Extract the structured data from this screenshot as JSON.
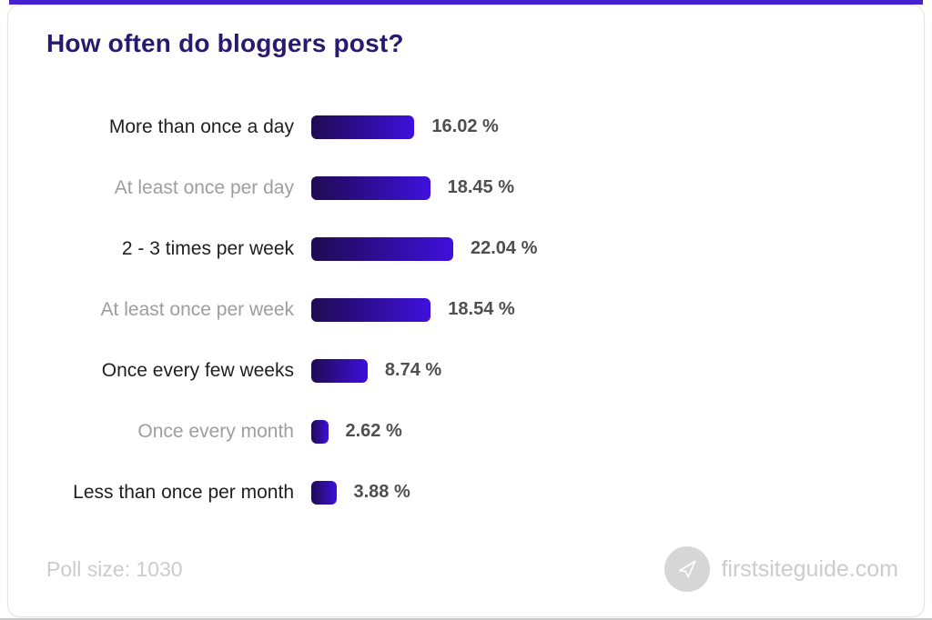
{
  "page": {
    "title": "How often do bloggers post?",
    "poll_size_label": "Poll size: 1030",
    "brand": "firstsiteguide.com"
  },
  "colors": {
    "title": "#2a1a6e",
    "bar_gradient_start": "#1e0b52",
    "bar_gradient_end": "#3f10dc",
    "label_dark": "#1f1f1f",
    "label_muted": "#9e9e9e",
    "value_text": "#4f4f4f",
    "footer_text": "#cccccc",
    "top_strip": "#4520cd",
    "logo_circle": "#d6d6d6"
  },
  "chart_data": {
    "type": "bar",
    "orientation": "horizontal",
    "title": "How often do bloggers post?",
    "categories": [
      "More than once a day",
      "At least once per day",
      "2 - 3 times per week",
      "At least once per week",
      "Once every few weeks",
      "Once every month",
      "Less than once per month"
    ],
    "values": [
      16.02,
      18.45,
      22.04,
      18.54,
      8.74,
      2.62,
      3.88
    ],
    "value_labels": [
      "16.02 %",
      "18.45 %",
      "22.04 %",
      "18.54 %",
      "8.74 %",
      "2.62 %",
      "3.88 %"
    ],
    "unit": "%",
    "xlim": [
      0,
      22.04
    ],
    "grid": false,
    "legend": false,
    "poll_size": 1030,
    "muted_label_indices": [
      1,
      3,
      5
    ]
  }
}
